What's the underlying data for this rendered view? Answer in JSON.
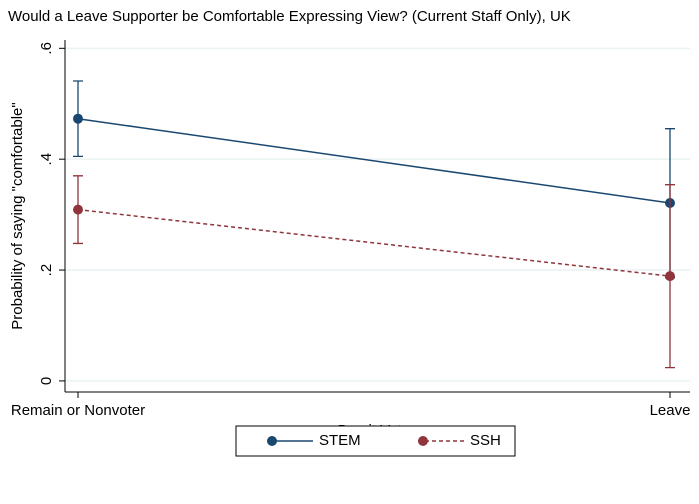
{
  "chart_data": {
    "type": "line",
    "title": "Would a Leave Supporter be Comfortable Expressing View? (Current Staff Only), UK",
    "x_label": "Brexit Vote",
    "y_label": "Probability of saying \"comfortable\"",
    "categories": [
      "Remain or Nonvoter",
      "Leave"
    ],
    "series": [
      {
        "name": "STEM",
        "color": "#1a476f",
        "dash": "solid",
        "values": [
          0.473,
          0.321
        ],
        "ci_low": [
          0.405,
          0.186
        ],
        "ci_high": [
          0.541,
          0.455
        ]
      },
      {
        "name": "SSH",
        "color": "#90353b",
        "dash": "dashed",
        "values": [
          0.309,
          0.189
        ],
        "ci_low": [
          0.248,
          0.024
        ],
        "ci_high": [
          0.37,
          0.354
        ]
      }
    ],
    "ylim": [
      -0.02,
      0.615
    ],
    "yticks": [
      0,
      {
        "value": 0.2,
        "label": ".2"
      },
      {
        "value": 0.4,
        "label": ".4"
      },
      {
        "value": 0.6,
        "label": ".6"
      }
    ],
    "grid": true,
    "legend": "bottom"
  }
}
